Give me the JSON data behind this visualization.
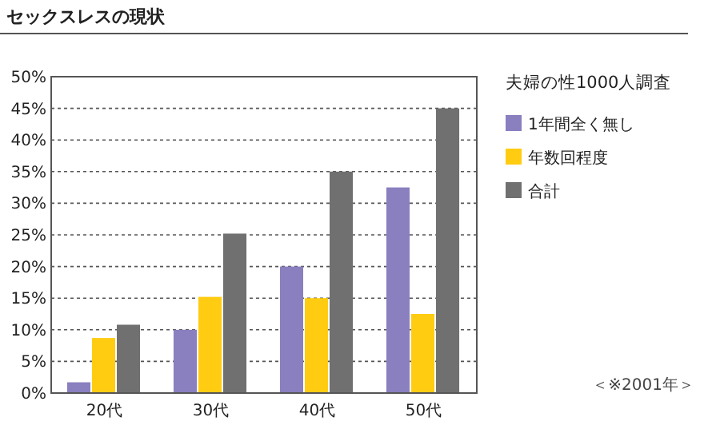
{
  "chart_data": {
    "type": "bar",
    "title": "セックスレスの現状",
    "legend_title": "夫婦の性1000人調査",
    "categories": [
      "20代",
      "30代",
      "40代",
      "50代"
    ],
    "series": [
      {
        "name": "1年間全く無し",
        "color": "#8a7fbf",
        "values": [
          1.7,
          10,
          20,
          32.5
        ]
      },
      {
        "name": "年数回程度",
        "color": "#ffcc11",
        "values": [
          8.7,
          15.2,
          15,
          12.5
        ]
      },
      {
        "name": "合計",
        "color": "#707070",
        "values": [
          10.8,
          25.2,
          35,
          45
        ]
      }
    ],
    "ylim": [
      0,
      50
    ],
    "yticks": [
      {
        "value": 0,
        "label": "0%"
      },
      {
        "value": 5,
        "label": "5%"
      },
      {
        "value": 10,
        "label": "10%"
      },
      {
        "value": 15,
        "label": "15%"
      },
      {
        "value": 20,
        "label": "20%"
      },
      {
        "value": 25,
        "label": "25%"
      },
      {
        "value": 30,
        "label": "30%"
      },
      {
        "value": 35,
        "label": "35%"
      },
      {
        "value": 40,
        "label": "40%"
      },
      {
        "value": 45,
        "label": "45%"
      },
      {
        "value": 50,
        "label": "50%"
      }
    ],
    "grid": "y",
    "legend": "right",
    "annotations": [
      "＜※2001年＞"
    ]
  }
}
